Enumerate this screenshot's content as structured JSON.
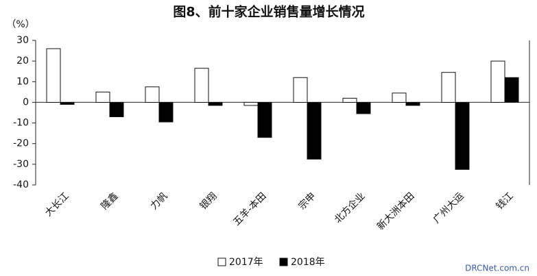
{
  "chart_data": {
    "type": "bar",
    "title": "图8、前十家企业销售量增长情况",
    "y_label": "（%）",
    "categories": [
      "大长江",
      "隆鑫",
      "力帆",
      "银翔",
      "五羊-本田",
      "宗申",
      "北方企业",
      "新大洲本田",
      "广州大运",
      "钱江"
    ],
    "series": [
      {
        "name": "2017年",
        "color": "#ffffff",
        "values": [
          26,
          5,
          7.5,
          16.5,
          -1.5,
          12,
          2,
          4.5,
          14.5,
          20
        ]
      },
      {
        "name": "2018年",
        "color": "#000000",
        "values": [
          -1,
          -7,
          -9.5,
          -1.5,
          -17,
          -27.5,
          -5.5,
          -1.5,
          -32.5,
          12
        ]
      }
    ],
    "ylim": [
      -40,
      30
    ],
    "yticks": [
      -40,
      -30,
      -20,
      -10,
      0,
      10,
      20,
      30
    ],
    "legend": "bottom",
    "watermark": "DRCNet.com.cn"
  }
}
